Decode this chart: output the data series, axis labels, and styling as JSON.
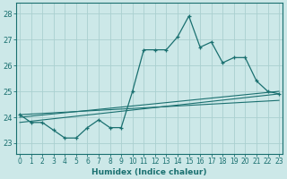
{
  "xlabel": "Humidex (Indice chaleur)",
  "background_color": "#cce8e8",
  "grid_color": "#aad0d0",
  "line_color": "#1a7070",
  "x_ticks": [
    0,
    1,
    2,
    3,
    4,
    5,
    6,
    7,
    8,
    9,
    10,
    11,
    12,
    13,
    14,
    15,
    16,
    17,
    18,
    19,
    20,
    21,
    22,
    23
  ],
  "y_ticks": [
    23,
    24,
    25,
    26,
    27,
    28
  ],
  "xlim": [
    -0.3,
    23.3
  ],
  "ylim": [
    22.6,
    28.4
  ],
  "series1_x": [
    0,
    1,
    2,
    3,
    4,
    5,
    6,
    7,
    8,
    9,
    10,
    11,
    12,
    13,
    14,
    15,
    16,
    17,
    18,
    19,
    20,
    21,
    22,
    23
  ],
  "series1_y": [
    24.1,
    23.8,
    23.8,
    23.5,
    23.2,
    23.2,
    23.6,
    23.9,
    23.6,
    23.6,
    25.0,
    26.6,
    26.6,
    26.6,
    27.1,
    27.9,
    26.7,
    26.9,
    26.1,
    26.3,
    26.3,
    25.4,
    25.0,
    24.9
  ],
  "reg_line1_x": [
    0,
    23
  ],
  "reg_line1_y": [
    24.0,
    25.0
  ],
  "reg_line2_x": [
    0,
    23
  ],
  "reg_line2_y": [
    23.8,
    24.9
  ],
  "reg_line3_x": [
    0,
    23
  ],
  "reg_line3_y": [
    24.1,
    24.65
  ]
}
